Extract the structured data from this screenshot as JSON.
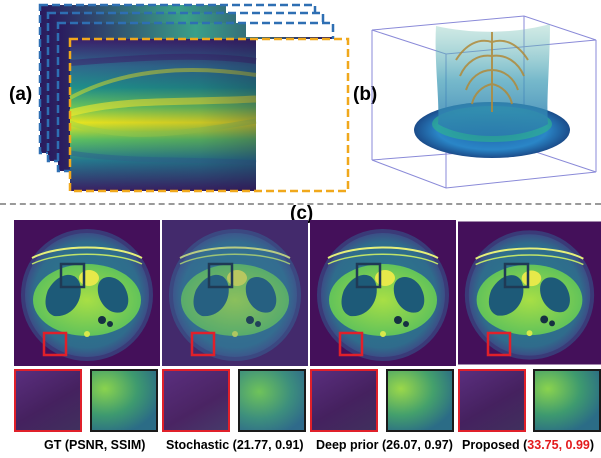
{
  "labels": {
    "a": "(a)",
    "b": "(b)",
    "c": "(c)"
  },
  "captions": {
    "gt": "GT (PSNR, SSIM)",
    "stochastic": "Stochastic (21.77, 0.91)",
    "deep_prior": "Deep prior (26.07, 0.97)",
    "proposed_prefix": "Proposed (",
    "proposed_psnr": "33.75",
    "proposed_sep": ", ",
    "proposed_ssim": "0.99",
    "proposed_suffix": ")"
  },
  "colors": {
    "highlight": "#e31a1c",
    "roi_red": "#e0202a",
    "roi_blue": "#1f3a55",
    "frame_blue": "#2e6fb3",
    "frame_orange": "#f0a81c",
    "background_purple": "#44105a"
  },
  "columns": [
    "gt",
    "stochastic",
    "deep_prior",
    "proposed"
  ]
}
